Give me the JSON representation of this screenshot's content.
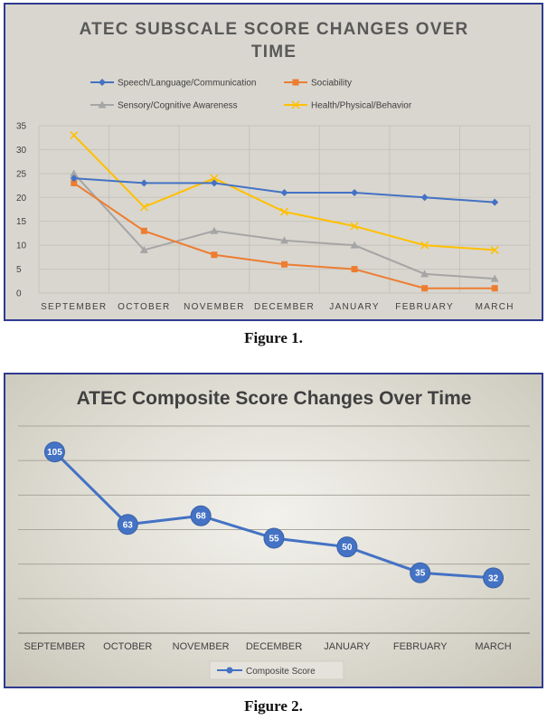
{
  "captions": {
    "fig1": "Figure 1.",
    "fig2": "Figure 2."
  },
  "chart_data": [
    {
      "type": "line",
      "title_lines": [
        "ATEC SUBSCALE SCORE CHANGES OVER",
        "TIME"
      ],
      "categories": [
        "SEPTEMBER",
        "OCTOBER",
        "NOVEMBER",
        "DECEMBER",
        "JANUARY",
        "FEBRUARY",
        "MARCH"
      ],
      "ylim": [
        0,
        35
      ],
      "yticks": [
        0,
        5,
        10,
        15,
        20,
        25,
        30,
        35
      ],
      "grid": true,
      "legend_position": "top",
      "series": [
        {
          "name": "Speech/Language/Communication",
          "color": "#4472c4",
          "marker": "diamond",
          "values": [
            24,
            23,
            23,
            21,
            21,
            20,
            19
          ]
        },
        {
          "name": "Sociability",
          "color": "#ed7d31",
          "marker": "square",
          "values": [
            23,
            13,
            8,
            6,
            5,
            1,
            1
          ]
        },
        {
          "name": "Sensory/Cognitive Awareness",
          "color": "#a5a5a5",
          "marker": "triangle",
          "values": [
            25,
            9,
            13,
            11,
            10,
            4,
            3
          ]
        },
        {
          "name": "Health/Physical/Behavior",
          "color": "#ffc000",
          "marker": "x",
          "values": [
            33,
            18,
            24,
            17,
            14,
            10,
            9
          ]
        }
      ]
    },
    {
      "type": "line",
      "title": "ATEC Composite Score Changes Over Time",
      "categories": [
        "SEPTEMBER",
        "OCTOBER",
        "NOVEMBER",
        "DECEMBER",
        "JANUARY",
        "FEBRUARY",
        "MARCH"
      ],
      "ylim": [
        0,
        120
      ],
      "grid": true,
      "legend_position": "bottom",
      "series": [
        {
          "name": "Composite Score",
          "color": "#4472c4",
          "values": [
            105,
            63,
            68,
            55,
            50,
            35,
            32
          ]
        }
      ]
    }
  ]
}
